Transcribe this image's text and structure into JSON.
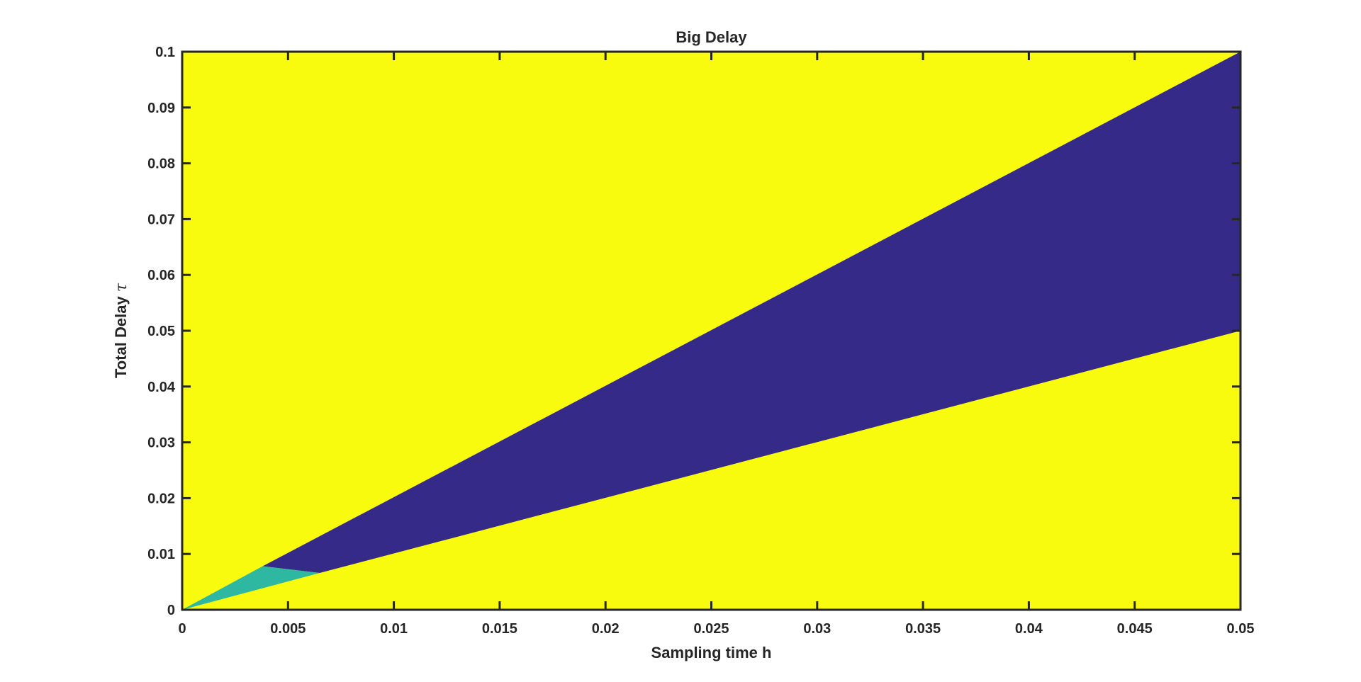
{
  "chart_data": {
    "type": "heatmap",
    "title": "Big Delay",
    "xlabel": "Sampling time h",
    "ylabel": "Total Delay",
    "ylabel_symbol": "τ",
    "xlim": [
      0,
      0.05
    ],
    "ylim": [
      0,
      0.1
    ],
    "xticks": [
      0,
      0.005,
      0.01,
      0.015,
      0.02,
      0.025,
      0.03,
      0.035,
      0.04,
      0.045,
      0.05
    ],
    "xtick_labels": [
      "0",
      "0.005",
      "0.01",
      "0.015",
      "0.02",
      "0.025",
      "0.03",
      "0.035",
      "0.04",
      "0.045",
      "0.05"
    ],
    "yticks": [
      0,
      0.01,
      0.02,
      0.03,
      0.04,
      0.05,
      0.06,
      0.07,
      0.08,
      0.09,
      0.1
    ],
    "ytick_labels": [
      "0",
      "0.01",
      "0.02",
      "0.03",
      "0.04",
      "0.05",
      "0.06",
      "0.07",
      "0.08",
      "0.09",
      "0.1"
    ],
    "grid": false,
    "colors": {
      "background_region": "#f9fb0e",
      "upper_region": "#352a87",
      "lower_region": "#2eb8a1",
      "axis": "#262626"
    },
    "regions": [
      {
        "id": "background",
        "color": "#f9fb0e",
        "polygon": [
          [
            0,
            0
          ],
          [
            0.05,
            0
          ],
          [
            0.05,
            0.1
          ],
          [
            0,
            0.1
          ]
        ]
      },
      {
        "id": "upper_region",
        "color": "#352a87",
        "polygon": [
          [
            0.0038,
            0.0078
          ],
          [
            0.05,
            0.1
          ],
          [
            0.05,
            0.05
          ],
          [
            0.0065,
            0.0066
          ]
        ]
      },
      {
        "id": "lower_region",
        "color": "#2eb8a1",
        "polygon": [
          [
            0,
            0
          ],
          [
            0.0038,
            0.0078
          ],
          [
            0.0065,
            0.0066
          ]
        ]
      }
    ]
  }
}
